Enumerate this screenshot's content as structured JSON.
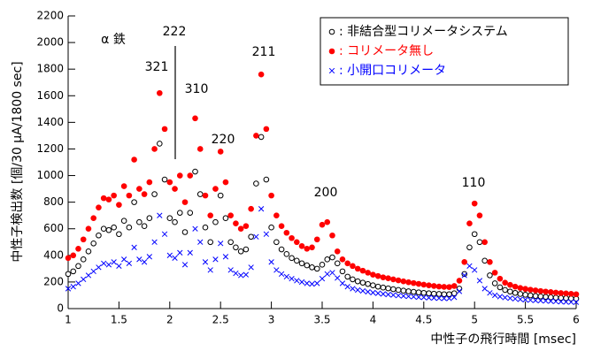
{
  "chart_data": {
    "type": "scatter",
    "xlabel": "中性子の飛行時間 [msec]",
    "ylabel": "中性子検出数 [個/30 μA/1800 sec]",
    "annotations": [
      "α 鉄",
      "222",
      "321",
      "310",
      "220",
      "211",
      "200",
      "110"
    ],
    "xlim": [
      1,
      6
    ],
    "xticks": [
      1,
      1.5,
      2,
      2.5,
      3,
      3.5,
      4,
      4.5,
      5,
      5.5,
      6
    ],
    "ylim": [
      0,
      2200
    ],
    "yticks": [
      0,
      200,
      400,
      600,
      800,
      1000,
      1200,
      1400,
      1600,
      1800,
      2000,
      2200
    ],
    "legend": "upper right",
    "x": [
      1.0,
      1.05,
      1.1,
      1.15,
      1.2,
      1.25,
      1.3,
      1.35,
      1.4,
      1.45,
      1.5,
      1.55,
      1.6,
      1.65,
      1.7,
      1.75,
      1.8,
      1.85,
      1.9,
      1.95,
      2.0,
      2.05,
      2.1,
      2.15,
      2.2,
      2.25,
      2.3,
      2.35,
      2.4,
      2.45,
      2.5,
      2.55,
      2.6,
      2.65,
      2.7,
      2.75,
      2.8,
      2.85,
      2.9,
      2.95,
      3.0,
      3.05,
      3.1,
      3.15,
      3.2,
      3.25,
      3.3,
      3.35,
      3.4,
      3.45,
      3.5,
      3.55,
      3.6,
      3.65,
      3.7,
      3.75,
      3.8,
      3.85,
      3.9,
      3.95,
      4.0,
      4.05,
      4.1,
      4.15,
      4.2,
      4.25,
      4.3,
      4.35,
      4.4,
      4.45,
      4.5,
      4.55,
      4.6,
      4.65,
      4.7,
      4.75,
      4.8,
      4.85,
      4.9,
      4.95,
      5.0,
      5.05,
      5.1,
      5.15,
      5.2,
      5.25,
      5.3,
      5.35,
      5.4,
      5.45,
      5.5,
      5.55,
      5.6,
      5.65,
      5.7,
      5.75,
      5.8,
      5.85,
      5.9,
      5.95,
      6.0
    ],
    "series": [
      {
        "name": ": 非結合型コリメータシステム",
        "color": "#000000",
        "marker": "open-circle",
        "values": [
          260,
          280,
          320,
          370,
          430,
          490,
          550,
          600,
          590,
          610,
          560,
          660,
          610,
          800,
          650,
          620,
          680,
          860,
          1240,
          970,
          680,
          650,
          720,
          575,
          720,
          1030,
          860,
          610,
          500,
          650,
          850,
          680,
          500,
          460,
          430,
          445,
          540,
          940,
          1290,
          970,
          610,
          500,
          445,
          410,
          380,
          360,
          340,
          325,
          310,
          300,
          330,
          370,
          385,
          340,
          280,
          240,
          220,
          205,
          195,
          185,
          175,
          165,
          158,
          152,
          146,
          140,
          135,
          130,
          126,
          122,
          118,
          115,
          112,
          110,
          108,
          108,
          115,
          150,
          260,
          460,
          560,
          500,
          360,
          250,
          190,
          160,
          140,
          128,
          118,
          110,
          104,
          99,
          95,
          91,
          88,
          85,
          82,
          80,
          78,
          76,
          74
        ]
      },
      {
        "name": ": コリメータ無し",
        "color": "#ff0000",
        "marker": "filled-circle",
        "values": [
          380,
          400,
          450,
          520,
          600,
          680,
          760,
          830,
          820,
          850,
          780,
          920,
          850,
          1120,
          900,
          860,
          950,
          1200,
          1620,
          1350,
          950,
          900,
          1000,
          800,
          1000,
          1430,
          1200,
          850,
          700,
          900,
          1180,
          950,
          700,
          640,
          600,
          620,
          750,
          1300,
          1760,
          1350,
          850,
          700,
          620,
          570,
          530,
          500,
          470,
          450,
          460,
          520,
          630,
          650,
          550,
          430,
          370,
          340,
          320,
          300,
          285,
          270,
          255,
          245,
          235,
          228,
          220,
          212,
          205,
          198,
          192,
          186,
          180,
          175,
          170,
          166,
          163,
          162,
          170,
          210,
          350,
          640,
          790,
          700,
          500,
          350,
          270,
          225,
          195,
          178,
          165,
          155,
          148,
          142,
          137,
          132,
          128,
          124,
          120,
          117,
          114,
          111,
          108
        ]
      },
      {
        "name": ": 小開口コリメータ",
        "color": "#0000ff",
        "marker": "cross",
        "values": [
          150,
          165,
          190,
          220,
          250,
          280,
          310,
          340,
          330,
          350,
          320,
          370,
          340,
          460,
          370,
          350,
          390,
          500,
          700,
          560,
          400,
          380,
          420,
          330,
          420,
          600,
          500,
          350,
          290,
          370,
          490,
          390,
          290,
          265,
          250,
          255,
          310,
          540,
          750,
          560,
          350,
          290,
          260,
          240,
          225,
          210,
          200,
          190,
          185,
          190,
          225,
          260,
          270,
          230,
          190,
          165,
          150,
          140,
          133,
          126,
          120,
          115,
          110,
          106,
          102,
          98,
          95,
          92,
          89,
          86,
          84,
          82,
          80,
          78,
          77,
          77,
          85,
          130,
          250,
          320,
          290,
          210,
          150,
          118,
          100,
          90,
          83,
          78,
          74,
          70,
          67,
          64,
          62,
          60,
          58,
          56,
          54,
          52,
          50,
          49,
          48
        ]
      }
    ]
  }
}
